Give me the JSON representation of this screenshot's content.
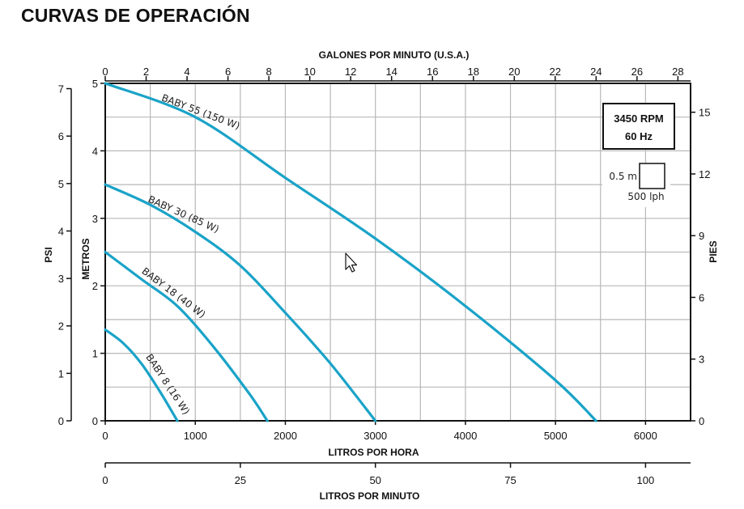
{
  "page": {
    "title": "CURVAS DE OPERACIÓN"
  },
  "chart_data": {
    "type": "line",
    "title": "CURVAS DE OPERACIÓN",
    "xlabel": "LITROS POR HORA",
    "xlim": [
      0,
      6500
    ],
    "x_ticks": [
      0,
      1000,
      2000,
      3000,
      4000,
      5000,
      6000
    ],
    "ylabel": "METROS",
    "ylim": [
      0,
      5
    ],
    "y_ticks": [
      0,
      1,
      2,
      3,
      4,
      5
    ],
    "grid": true,
    "secondary_axes": {
      "top": {
        "label": "GALONES POR MINUTO (U.S.A.)",
        "ticks": [
          "0",
          "2",
          "4",
          "6",
          "8",
          "10",
          "12",
          "14",
          "16",
          "18",
          "20",
          "22",
          "24",
          "26",
          "28"
        ]
      },
      "left_outer": {
        "label": "PSI",
        "ticks": [
          "0",
          "1",
          "2",
          "3",
          "4",
          "5",
          "6",
          "7"
        ]
      },
      "right": {
        "label": "PIES",
        "ticks": [
          "0",
          "3",
          "6",
          "9",
          "12",
          "15"
        ]
      },
      "bottom_outer": {
        "label": "LITROS POR MINUTO",
        "ticks": [
          "0",
          "25",
          "50",
          "75",
          "100"
        ]
      }
    },
    "annotations": {
      "rpm_box": [
        "3450 RPM",
        "60 Hz"
      ],
      "scale_box": {
        "vertical": "0.5 m",
        "horizontal": "500 lph"
      }
    },
    "series": [
      {
        "name": "BABY 55 (150 W)",
        "color": "#1aa3c8",
        "x": [
          0,
          1000,
          2000,
          3000,
          4000,
          5000,
          5450
        ],
        "y": [
          5.0,
          4.5,
          3.6,
          2.7,
          1.7,
          0.6,
          0.0
        ]
      },
      {
        "name": "BABY 30 (85 W)",
        "color": "#1aa3c8",
        "x": [
          0,
          500,
          1000,
          1500,
          2000,
          2500,
          3000
        ],
        "y": [
          3.5,
          3.2,
          2.8,
          2.3,
          1.6,
          0.85,
          0.0
        ]
      },
      {
        "name": "BABY 18 (40 W)",
        "color": "#1aa3c8",
        "x": [
          0,
          400,
          800,
          1200,
          1600,
          1800
        ],
        "y": [
          2.5,
          2.1,
          1.7,
          1.1,
          0.4,
          0.0
        ]
      },
      {
        "name": "BABY 8 (16 W)",
        "color": "#1aa3c8",
        "x": [
          0,
          200,
          400,
          600,
          800
        ],
        "y": [
          1.35,
          1.15,
          0.85,
          0.45,
          0.0
        ]
      }
    ]
  }
}
